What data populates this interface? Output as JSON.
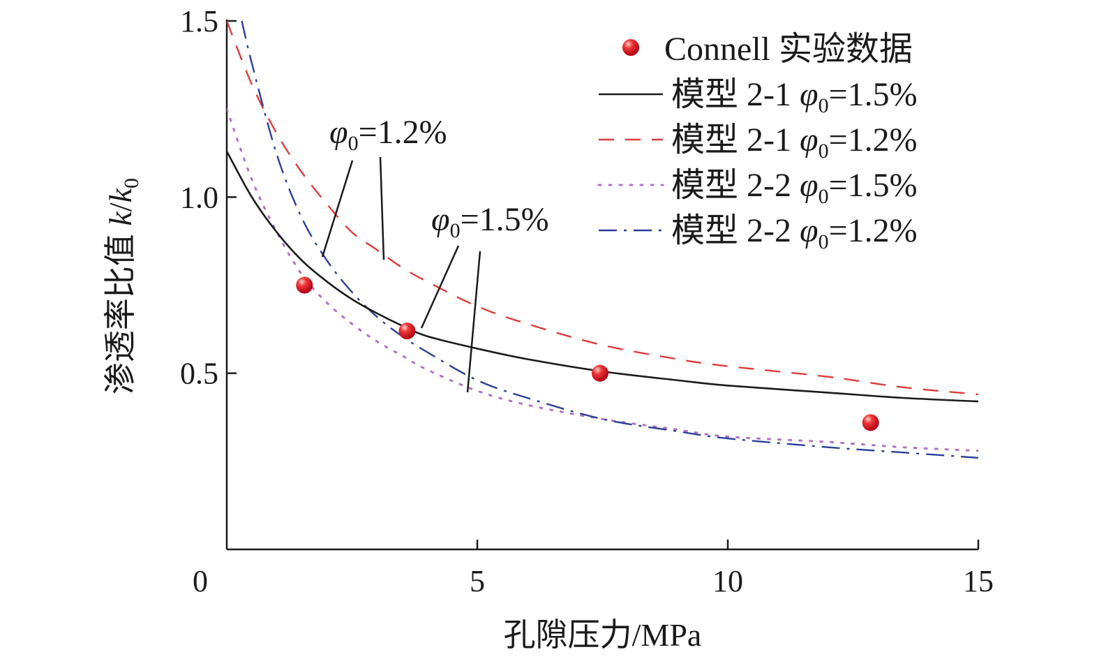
{
  "chart_data": {
    "type": "line",
    "xlabel": "孔隙压力/MPa",
    "ylabel_text": "渗透率比值",
    "ylabel_var": "k",
    "ylabel_sep": "/",
    "ylabel_var0": "k",
    "ylabel_sub": "0",
    "xlim": [
      0,
      15
    ],
    "ylim": [
      0,
      1.5
    ],
    "x_ticks": [
      0,
      5,
      10,
      15
    ],
    "x_tick_labels": [
      "0",
      "5",
      "10",
      "15"
    ],
    "y_ticks": [
      0.5,
      1.0,
      1.5
    ],
    "y_tick_labels": [
      "0.5",
      "1.0",
      "1.5"
    ],
    "grid": false,
    "legend_position": "top-right",
    "series": [
      {
        "name": "Connell 实验数据",
        "kind": "scatter",
        "color": "#e8202a",
        "x": [
          1.55,
          3.6,
          7.45,
          12.85
        ],
        "y": [
          0.75,
          0.62,
          0.5,
          0.36
        ]
      },
      {
        "name": "模型 2-1 φ0=1.5%",
        "label_prefix": "模型 2-1",
        "label_param": "1.5%",
        "kind": "line",
        "style": "solid",
        "color": "#1a1a1a",
        "x": [
          0,
          0.5,
          1.0,
          1.5,
          2.0,
          2.5,
          3.0,
          3.5,
          4.0,
          5.0,
          6.0,
          7.5,
          9.0,
          10.0,
          12.0,
          13.5,
          15.0
        ],
        "y": [
          1.13,
          1.0,
          0.9,
          0.82,
          0.76,
          0.71,
          0.67,
          0.635,
          0.605,
          0.57,
          0.54,
          0.505,
          0.48,
          0.465,
          0.445,
          0.43,
          0.42
        ]
      },
      {
        "name": "模型 2-1 φ0=1.2%",
        "label_prefix": "模型 2-1",
        "label_param": "1.2%",
        "kind": "line",
        "style": "dashed",
        "color": "#e03a3a",
        "x": [
          0,
          0.5,
          1.0,
          1.5,
          2.0,
          2.5,
          3.0,
          3.5,
          4.0,
          5.0,
          6.0,
          7.5,
          9.0,
          10.0,
          12.0,
          13.5,
          15.0
        ],
        "y": [
          1.5,
          1.32,
          1.18,
          1.07,
          0.98,
          0.9,
          0.85,
          0.8,
          0.76,
          0.69,
          0.64,
          0.58,
          0.54,
          0.52,
          0.49,
          0.46,
          0.44
        ]
      },
      {
        "name": "模型 2-2 φ0=1.5%",
        "label_prefix": "模型 2-2",
        "label_param": "1.5%",
        "kind": "line",
        "style": "dotted",
        "color": "#b070c8",
        "x": [
          0,
          0.5,
          1.0,
          1.5,
          2.0,
          2.5,
          3.0,
          3.5,
          4.0,
          5.0,
          6.0,
          7.5,
          9.0,
          10.0,
          12.0,
          13.5,
          15.0
        ],
        "y": [
          1.25,
          1.05,
          0.9,
          0.78,
          0.7,
          0.64,
          0.59,
          0.55,
          0.51,
          0.45,
          0.41,
          0.37,
          0.34,
          0.32,
          0.305,
          0.29,
          0.28
        ]
      },
      {
        "name": "模型 2-2 φ0=1.2%",
        "label_prefix": "模型 2-2",
        "label_param": "1.2%",
        "kind": "line",
        "style": "dashdot",
        "color": "#2b3f9a",
        "x": [
          0.3,
          0.5,
          1.0,
          1.5,
          2.0,
          2.5,
          3.0,
          3.5,
          4.0,
          5.0,
          6.0,
          7.5,
          9.0,
          10.0,
          12.0,
          13.5,
          15.0
        ],
        "y": [
          1.5,
          1.38,
          1.12,
          0.94,
          0.82,
          0.73,
          0.66,
          0.605,
          0.56,
          0.48,
          0.43,
          0.37,
          0.335,
          0.315,
          0.29,
          0.275,
          0.26
        ]
      }
    ],
    "annotations": [
      {
        "text": "1.2%",
        "symbol": "φ",
        "sub": "0",
        "eq": "="
      },
      {
        "text": "1.5%",
        "symbol": "φ",
        "sub": "0",
        "eq": "="
      }
    ]
  }
}
